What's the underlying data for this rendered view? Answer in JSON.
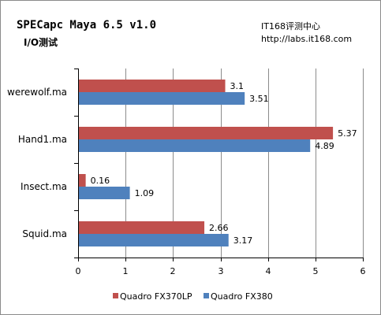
{
  "header": {
    "title": "SPECapc Maya 6.5 v1.0",
    "subtitle": "I/O测试",
    "brand": "IT168评测中心",
    "brand_url": "http://labs.it168.com"
  },
  "colors": {
    "series1": "#c0504d",
    "series2": "#4f81bd",
    "grid": "#8c8c8c"
  },
  "chart_data": {
    "type": "bar",
    "orientation": "horizontal",
    "categories": [
      "werewolf.ma",
      "Hand1.ma",
      "Insect.ma",
      "Squid.ma"
    ],
    "series": [
      {
        "name": "Quadro FX370LP",
        "values": [
          3.1,
          5.37,
          0.16,
          2.66
        ],
        "labels": [
          "3.1",
          "5.37",
          "0.16",
          "2.66"
        ]
      },
      {
        "name": "Quadro FX380",
        "values": [
          3.51,
          4.89,
          1.09,
          3.17
        ],
        "labels": [
          "3.51",
          "4.89",
          "1.09",
          "3.17"
        ]
      }
    ],
    "xlim": [
      0,
      6
    ],
    "xticks": [
      "0",
      "1",
      "2",
      "3",
      "4",
      "5",
      "6"
    ],
    "grid": true,
    "legend_position": "bottom"
  }
}
